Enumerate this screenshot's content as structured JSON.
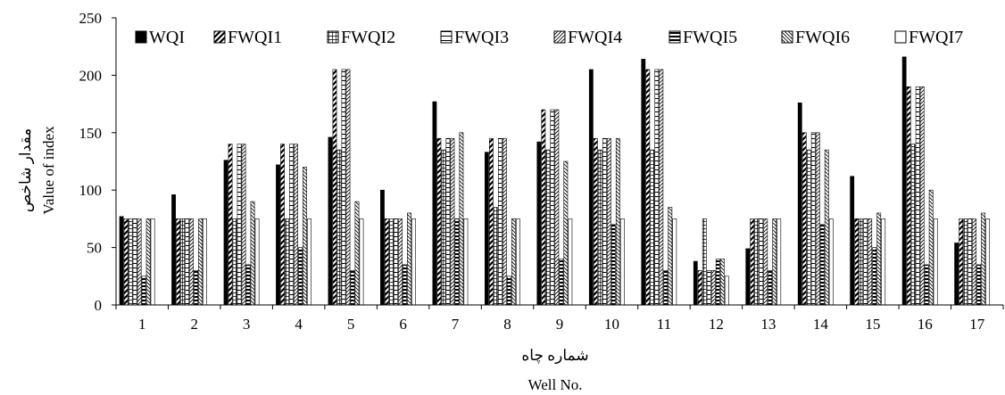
{
  "chart_data": {
    "type": "bar",
    "xlabel_fa": "شماره چاه",
    "xlabel_en": "Well No.",
    "ylabel_fa": "مقدار شاخص",
    "ylabel_en": "Value of index",
    "ylim": [
      0,
      250
    ],
    "yticks": [
      "0",
      "50",
      "100",
      "150",
      "200",
      "250"
    ],
    "grid": false,
    "legend_position": "top",
    "categories": [
      "1",
      "2",
      "3",
      "4",
      "5",
      "6",
      "7",
      "8",
      "9",
      "10",
      "11",
      "12",
      "13",
      "14",
      "15",
      "16",
      "17"
    ],
    "series": [
      {
        "name": "WQI",
        "pattern": "solid",
        "values": [
          77,
          96,
          126,
          122,
          146,
          100,
          177,
          133,
          142,
          205,
          214,
          38,
          49,
          176,
          112,
          216,
          54
        ]
      },
      {
        "name": "FWQI1",
        "pattern": "diag-left",
        "values": [
          75,
          75,
          140,
          140,
          205,
          75,
          145,
          145,
          170,
          145,
          205,
          30,
          75,
          150,
          75,
          190,
          75
        ]
      },
      {
        "name": "FWQI2",
        "pattern": "grid",
        "values": [
          75,
          75,
          75,
          75,
          135,
          75,
          135,
          85,
          135,
          135,
          135,
          75,
          75,
          135,
          75,
          140,
          75
        ]
      },
      {
        "name": "FWQI3",
        "pattern": "horiz",
        "values": [
          75,
          75,
          140,
          140,
          205,
          75,
          145,
          145,
          170,
          145,
          205,
          30,
          75,
          150,
          75,
          190,
          75
        ]
      },
      {
        "name": "FWQI4",
        "pattern": "diag-fine",
        "values": [
          75,
          75,
          140,
          140,
          205,
          75,
          145,
          145,
          170,
          145,
          205,
          30,
          75,
          150,
          75,
          190,
          75
        ]
      },
      {
        "name": "FWQI5",
        "pattern": "horiz-bold",
        "values": [
          25,
          30,
          35,
          50,
          30,
          35,
          75,
          25,
          40,
          70,
          30,
          40,
          30,
          70,
          50,
          35,
          35
        ]
      },
      {
        "name": "FWQI6",
        "pattern": "diag-right",
        "values": [
          75,
          75,
          90,
          120,
          90,
          80,
          150,
          75,
          125,
          145,
          85,
          40,
          75,
          135,
          80,
          100,
          80
        ]
      },
      {
        "name": "FWQI7",
        "pattern": "empty",
        "values": [
          75,
          75,
          75,
          75,
          75,
          75,
          75,
          75,
          75,
          75,
          75,
          25,
          75,
          75,
          75,
          75,
          75
        ]
      }
    ]
  }
}
